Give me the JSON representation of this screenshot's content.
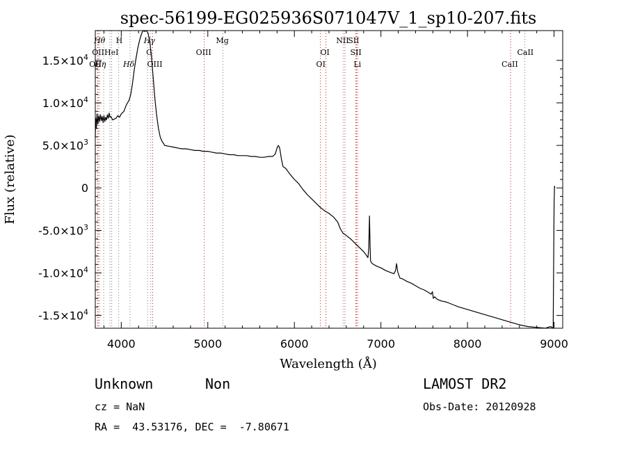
{
  "chart_data": {
    "type": "line",
    "title": "spec-56199-EG025936S071047V_1_sp10-207.fits",
    "xlabel": "Wavelength (Å)",
    "ylabel": "Flux (relative)",
    "xlim": [
      3700,
      9100
    ],
    "ylim": [
      -16500,
      18500
    ],
    "grid": false,
    "legend": "none",
    "x_ticks": [
      {
        "value": 4000,
        "label": "4000"
      },
      {
        "value": 5000,
        "label": "5000"
      },
      {
        "value": 6000,
        "label": "6000"
      },
      {
        "value": 7000,
        "label": "7000"
      },
      {
        "value": 8000,
        "label": "8000"
      },
      {
        "value": 9000,
        "label": "9000"
      }
    ],
    "y_ticks": [
      {
        "value": 15000,
        "mant": "1.5",
        "exp": "4"
      },
      {
        "value": 10000,
        "mant": "1.0",
        "exp": "4"
      },
      {
        "value": 5000,
        "mant": "5.0",
        "exp": "3"
      },
      {
        "value": 0,
        "mant": "0",
        "exp": ""
      },
      {
        "value": -5000,
        "mant": "-5.0",
        "exp": "3"
      },
      {
        "value": -10000,
        "mant": "-1.0",
        "exp": "4"
      },
      {
        "value": -15000,
        "mant": "-1.5",
        "exp": "4"
      }
    ],
    "series": [
      {
        "points": [
          [
            3700,
            6000
          ],
          [
            3705,
            8200
          ],
          [
            3712,
            7000
          ],
          [
            3720,
            8700
          ],
          [
            3730,
            7500
          ],
          [
            3740,
            8500
          ],
          [
            3750,
            7800
          ],
          [
            3760,
            8600
          ],
          [
            3770,
            7900
          ],
          [
            3780,
            8400
          ],
          [
            3790,
            7700
          ],
          [
            3800,
            8500
          ],
          [
            3810,
            7800
          ],
          [
            3820,
            8300
          ],
          [
            3830,
            8000
          ],
          [
            3840,
            8600
          ],
          [
            3850,
            8200
          ],
          [
            3860,
            8800
          ],
          [
            3870,
            8300
          ],
          [
            3880,
            8400
          ],
          [
            3900,
            8000
          ],
          [
            3920,
            8100
          ],
          [
            3940,
            8200
          ],
          [
            3960,
            8500
          ],
          [
            3980,
            8300
          ],
          [
            4000,
            8700
          ],
          [
            4030,
            9000
          ],
          [
            4060,
            9800
          ],
          [
            4090,
            10300
          ],
          [
            4110,
            11000
          ],
          [
            4130,
            12300
          ],
          [
            4150,
            13900
          ],
          [
            4170,
            15200
          ],
          [
            4190,
            16400
          ],
          [
            4210,
            17300
          ],
          [
            4230,
            18000
          ],
          [
            4250,
            18500
          ],
          [
            4270,
            18400
          ],
          [
            4290,
            18500
          ],
          [
            4310,
            18200
          ],
          [
            4330,
            17200
          ],
          [
            4350,
            15300
          ],
          [
            4370,
            12800
          ],
          [
            4390,
            10300
          ],
          [
            4410,
            8400
          ],
          [
            4430,
            7000
          ],
          [
            4450,
            6000
          ],
          [
            4470,
            5500
          ],
          [
            4490,
            5200
          ],
          [
            4500,
            5000
          ],
          [
            4550,
            4900
          ],
          [
            4600,
            4800
          ],
          [
            4650,
            4700
          ],
          [
            4700,
            4600
          ],
          [
            4750,
            4600
          ],
          [
            4800,
            4500
          ],
          [
            4850,
            4400
          ],
          [
            4900,
            4400
          ],
          [
            4950,
            4300
          ],
          [
            5000,
            4300
          ],
          [
            5050,
            4200
          ],
          [
            5100,
            4100
          ],
          [
            5150,
            4100
          ],
          [
            5200,
            4000
          ],
          [
            5250,
            3900
          ],
          [
            5300,
            3900
          ],
          [
            5350,
            3800
          ],
          [
            5400,
            3800
          ],
          [
            5450,
            3800
          ],
          [
            5500,
            3700
          ],
          [
            5550,
            3700
          ],
          [
            5600,
            3600
          ],
          [
            5650,
            3600
          ],
          [
            5700,
            3700
          ],
          [
            5750,
            3700
          ],
          [
            5780,
            4000
          ],
          [
            5800,
            4700
          ],
          [
            5815,
            5000
          ],
          [
            5830,
            4700
          ],
          [
            5850,
            3400
          ],
          [
            5870,
            2500
          ],
          [
            5900,
            2300
          ],
          [
            5950,
            1600
          ],
          [
            6000,
            1000
          ],
          [
            6050,
            500
          ],
          [
            6100,
            -200
          ],
          [
            6150,
            -800
          ],
          [
            6200,
            -1300
          ],
          [
            6250,
            -1800
          ],
          [
            6300,
            -2300
          ],
          [
            6350,
            -2700
          ],
          [
            6400,
            -3000
          ],
          [
            6450,
            -3400
          ],
          [
            6500,
            -4000
          ],
          [
            6530,
            -4800
          ],
          [
            6560,
            -5300
          ],
          [
            6600,
            -5600
          ],
          [
            6650,
            -6000
          ],
          [
            6700,
            -6500
          ],
          [
            6750,
            -7000
          ],
          [
            6800,
            -7500
          ],
          [
            6830,
            -7900
          ],
          [
            6850,
            -8200
          ],
          [
            6860,
            -7000
          ],
          [
            6868,
            -3300
          ],
          [
            6875,
            -6800
          ],
          [
            6880,
            -8600
          ],
          [
            6900,
            -8900
          ],
          [
            6950,
            -9200
          ],
          [
            7000,
            -9400
          ],
          [
            7050,
            -9700
          ],
          [
            7100,
            -9900
          ],
          [
            7150,
            -10100
          ],
          [
            7170,
            -9700
          ],
          [
            7180,
            -8900
          ],
          [
            7195,
            -9900
          ],
          [
            7220,
            -10600
          ],
          [
            7250,
            -10700
          ],
          [
            7300,
            -11000
          ],
          [
            7350,
            -11200
          ],
          [
            7400,
            -11500
          ],
          [
            7450,
            -11800
          ],
          [
            7500,
            -12000
          ],
          [
            7550,
            -12300
          ],
          [
            7580,
            -12500
          ],
          [
            7595,
            -12200
          ],
          [
            7605,
            -13000
          ],
          [
            7620,
            -12800
          ],
          [
            7650,
            -13100
          ],
          [
            7700,
            -13300
          ],
          [
            7750,
            -13400
          ],
          [
            7800,
            -13600
          ],
          [
            7850,
            -13800
          ],
          [
            7900,
            -14000
          ],
          [
            8000,
            -14300
          ],
          [
            8100,
            -14600
          ],
          [
            8200,
            -14900
          ],
          [
            8300,
            -15200
          ],
          [
            8400,
            -15500
          ],
          [
            8500,
            -15800
          ],
          [
            8600,
            -16100
          ],
          [
            8700,
            -16300
          ],
          [
            8800,
            -16400
          ],
          [
            8900,
            -16500
          ],
          [
            8960,
            -16300
          ],
          [
            8990,
            -16500
          ],
          [
            9000,
            -2000
          ],
          [
            9005,
            200
          ],
          [
            9010,
            0
          ]
        ]
      }
    ],
    "line_markers": [
      {
        "x": 3726,
        "label": "OII",
        "row": 2,
        "color": "#c01818",
        "dx": -12
      },
      {
        "x": 3734,
        "label": "OII",
        "row": 1,
        "color": "#c01818",
        "dx": -9
      },
      {
        "x": 3750,
        "label": "Hη",
        "row": 2,
        "color": "#777777",
        "dx": -7,
        "italic": true
      },
      {
        "x": 3797,
        "label": "Hθ",
        "row": 0,
        "color": "#777777",
        "dx": -14,
        "italic": true
      },
      {
        "x": 3869,
        "label": "HeI",
        "row": 1,
        "color": "#777777",
        "dx": -8
      },
      {
        "x": 3889,
        "label": "",
        "row": 0,
        "color": "#777777",
        "dx": 0
      },
      {
        "x": 3970,
        "label": "H",
        "row": 0,
        "color": "#777777",
        "dx": -4
      },
      {
        "x": 4102,
        "label": "Hδ",
        "row": 2,
        "color": "#777777",
        "dx": -10,
        "italic": true
      },
      {
        "x": 4304,
        "label": "G",
        "row": 1,
        "color": "#777777",
        "dx": -2
      },
      {
        "x": 4341,
        "label": "Hγ",
        "row": 0,
        "color": "#777777",
        "dx": -10,
        "italic": true
      },
      {
        "x": 4363,
        "label": "OIII",
        "row": 2,
        "color": "#c01818",
        "dx": -8
      },
      {
        "x": 4959,
        "label": "OIII",
        "row": 1,
        "color": "#c01818",
        "dx": -12
      },
      {
        "x": 5175,
        "label": "Mg",
        "row": 0,
        "color": "#777777",
        "dx": -10
      },
      {
        "x": 6300,
        "label": "OI",
        "row": 2,
        "color": "#c01818",
        "dx": -6
      },
      {
        "x": 6364,
        "label": "OI",
        "row": 1,
        "color": "#c01818",
        "dx": -8
      },
      {
        "x": 6563,
        "label": "NII",
        "row": 0,
        "color": "#777777",
        "dx": -10
      },
      {
        "x": 6584,
        "label": "",
        "row": 0,
        "color": "#c01818",
        "dx": 0
      },
      {
        "x": 6708,
        "label": "Li",
        "row": 2,
        "color": "#c01818",
        "dx": -3
      },
      {
        "x": 6717,
        "label": "SII",
        "row": 1,
        "color": "#c01818",
        "dx": -9
      },
      {
        "x": 6731,
        "label": "SII",
        "row": 0,
        "color": "#c01818",
        "dx": -14
      },
      {
        "x": 8498,
        "label": "CaII",
        "row": 2,
        "color": "#c01818",
        "dx": -13
      },
      {
        "x": 8662,
        "label": "CaII",
        "row": 1,
        "color": "#777777",
        "dx": -11
      }
    ]
  },
  "info": {
    "class_label": "Unknown",
    "subclass_label": "Non",
    "survey_label": "LAMOST DR2",
    "cz_text": "cz = NaN",
    "obs_date_text": "Obs-Date: 20120928",
    "coords_text": "RA =  43.53176, DEC =  -7.80671"
  }
}
